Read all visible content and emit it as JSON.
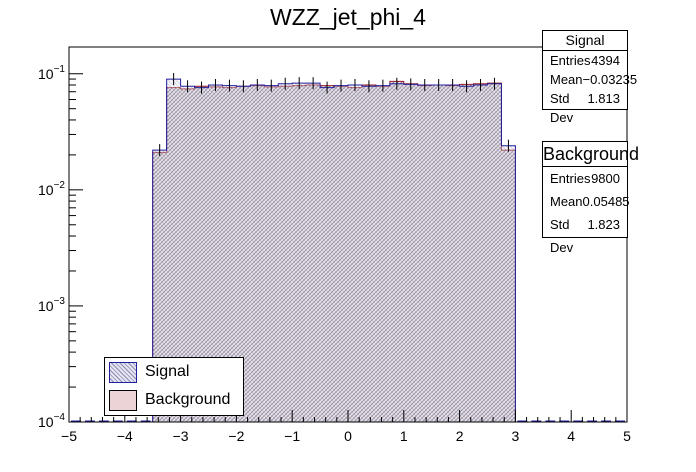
{
  "chart_data": {
    "type": "bar",
    "title": "WZZ_jet_phi_4",
    "xlabel": "",
    "ylabel": "",
    "xlim": [
      -5,
      5
    ],
    "ylim": [
      0.0001,
      0.17
    ],
    "yscale": "log",
    "x_ticks": [
      "−5",
      "−4",
      "−3",
      "−2",
      "−1",
      "0",
      "1",
      "2",
      "3",
      "4",
      "5"
    ],
    "y_ticks": [
      {
        "value": 0.1,
        "base": "10",
        "exp": "−1"
      },
      {
        "value": 0.01,
        "base": "10",
        "exp": "−2"
      },
      {
        "value": 0.001,
        "base": "10",
        "exp": "−3"
      },
      {
        "value": 0.0001,
        "base": "10",
        "exp": "−4"
      }
    ],
    "bin_edges": [
      -5.0,
      -4.75,
      -4.5,
      -4.25,
      -4.0,
      -3.75,
      -3.5,
      -3.25,
      -3.0,
      -2.75,
      -2.5,
      -2.25,
      -2.0,
      -1.75,
      -1.5,
      -1.25,
      -1.0,
      -0.75,
      -0.5,
      -0.25,
      0.0,
      0.25,
      0.5,
      0.75,
      1.0,
      1.25,
      1.5,
      1.75,
      2.0,
      2.25,
      2.5,
      2.75,
      3.0,
      3.25,
      3.5,
      3.75,
      4.0,
      4.25,
      4.5,
      4.75,
      5.0
    ],
    "series": [
      {
        "name": "Signal",
        "style": "step-hatched-blue",
        "values": [
          0,
          0,
          0,
          0,
          0,
          0,
          0.022,
          0.09,
          0.078,
          0.076,
          0.08,
          0.079,
          0.078,
          0.08,
          0.079,
          0.082,
          0.083,
          0.083,
          0.076,
          0.079,
          0.08,
          0.078,
          0.079,
          0.082,
          0.081,
          0.08,
          0.08,
          0.08,
          0.078,
          0.08,
          0.082,
          0.024,
          0,
          0,
          0,
          0,
          0,
          0,
          0,
          0
        ]
      },
      {
        "name": "Background",
        "style": "filled-hatched-red",
        "values": [
          0,
          0,
          0,
          0,
          0,
          0,
          0.021,
          0.076,
          0.074,
          0.078,
          0.077,
          0.076,
          0.078,
          0.079,
          0.077,
          0.078,
          0.079,
          0.08,
          0.079,
          0.078,
          0.076,
          0.08,
          0.078,
          0.086,
          0.082,
          0.079,
          0.08,
          0.079,
          0.081,
          0.082,
          0.083,
          0.022,
          0,
          0,
          0,
          0,
          0,
          0,
          0,
          0
        ]
      }
    ],
    "stats": [
      {
        "title": "Signal",
        "entries": "4394",
        "mean": "−0.03235",
        "std_dev": "1.813"
      },
      {
        "title": "Background",
        "entries": "9800",
        "mean": "0.05485",
        "std_dev": "1.823"
      }
    ],
    "labels": {
      "entries": "Entries",
      "mean": "Mean",
      "std_dev": "Std Dev"
    },
    "legend": [
      {
        "name": "Signal",
        "fill": "#d8d8ee",
        "edge": "#1f1f9f"
      },
      {
        "name": "Background",
        "fill": "#ecd4d6",
        "edge": "#9a1a2a"
      }
    ],
    "colors": {
      "signal": "#1f1f9f",
      "background": "#9a1a2a"
    }
  }
}
